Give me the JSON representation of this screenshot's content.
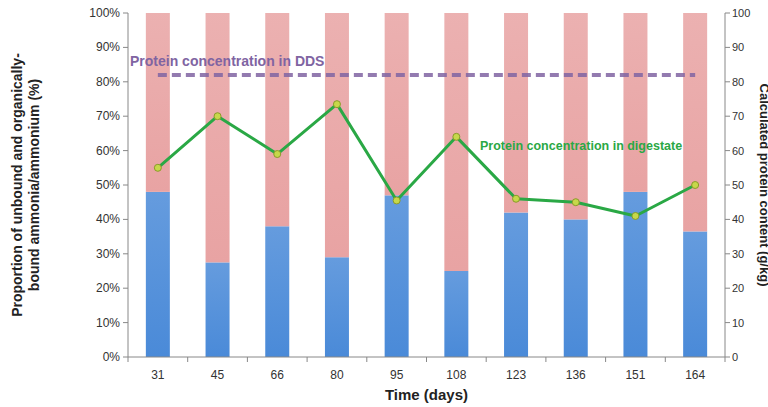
{
  "chart_data": {
    "type": "bar",
    "stacked": true,
    "grid": false,
    "x_label": "Time (days)",
    "y_label": "Proportion of unbound and organically-bound ammonia/ammonium (%)",
    "y2_label": "Calculated protein content (g/kg)",
    "categories": [
      "31",
      "45",
      "66",
      "80",
      "95",
      "108",
      "123",
      "136",
      "151",
      "164"
    ],
    "ylim": [
      0,
      100
    ],
    "yticks": [
      {
        "value": 0,
        "label": "0%"
      },
      {
        "value": 10,
        "label": "10%"
      },
      {
        "value": 20,
        "label": "20%"
      },
      {
        "value": 30,
        "label": "30%"
      },
      {
        "value": 40,
        "label": "40%"
      },
      {
        "value": 50,
        "label": "50%"
      },
      {
        "value": 60,
        "label": "60%"
      },
      {
        "value": 70,
        "label": "70%"
      },
      {
        "value": 80,
        "label": "80%"
      },
      {
        "value": 90,
        "label": "90%"
      },
      {
        "value": 100,
        "label": "100%"
      }
    ],
    "y2lim": [
      0,
      100
    ],
    "y2ticks": [
      0,
      10,
      20,
      30,
      40,
      50,
      60,
      70,
      80,
      90,
      100
    ],
    "series": [
      {
        "type": "bar",
        "color": "#4a8ad8",
        "values": [
          48,
          27.5,
          38,
          29,
          47,
          25,
          42,
          40,
          48,
          36.5
        ]
      },
      {
        "type": "bar",
        "color": "#e8a3a3",
        "values": [
          52,
          72.5,
          62,
          71,
          53,
          75,
          58,
          60,
          52,
          63.5
        ]
      },
      {
        "name": "Protein concentration in digestate",
        "type": "line",
        "axis": "y2",
        "color": "#2aa845",
        "marker": "circle",
        "line_style": "solid",
        "values": [
          55,
          70,
          59,
          73.5,
          45.5,
          64,
          46,
          45,
          41,
          50
        ]
      },
      {
        "name": "Protein concentration in DDS",
        "type": "line",
        "axis": "y2",
        "color": "#8064a2",
        "marker": "none",
        "line_style": "dashed",
        "values": [
          82,
          82,
          82,
          82,
          82,
          82,
          82,
          82,
          82,
          82
        ]
      }
    ]
  }
}
